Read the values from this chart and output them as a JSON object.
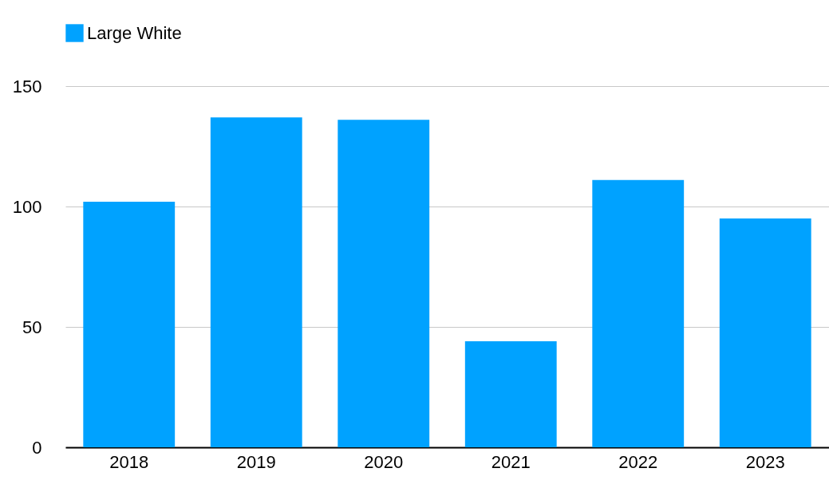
{
  "chart_data": {
    "type": "bar",
    "categories": [
      "2018",
      "2019",
      "2020",
      "2021",
      "2022",
      "2023"
    ],
    "series": [
      {
        "name": "Large White",
        "color": "#00a2ff",
        "values": [
          102,
          137,
          136,
          44,
          111,
          95
        ]
      }
    ],
    "ylim": [
      0,
      150
    ],
    "yticks": [
      0,
      50,
      100,
      150
    ],
    "grid": "y",
    "legend": "top"
  }
}
